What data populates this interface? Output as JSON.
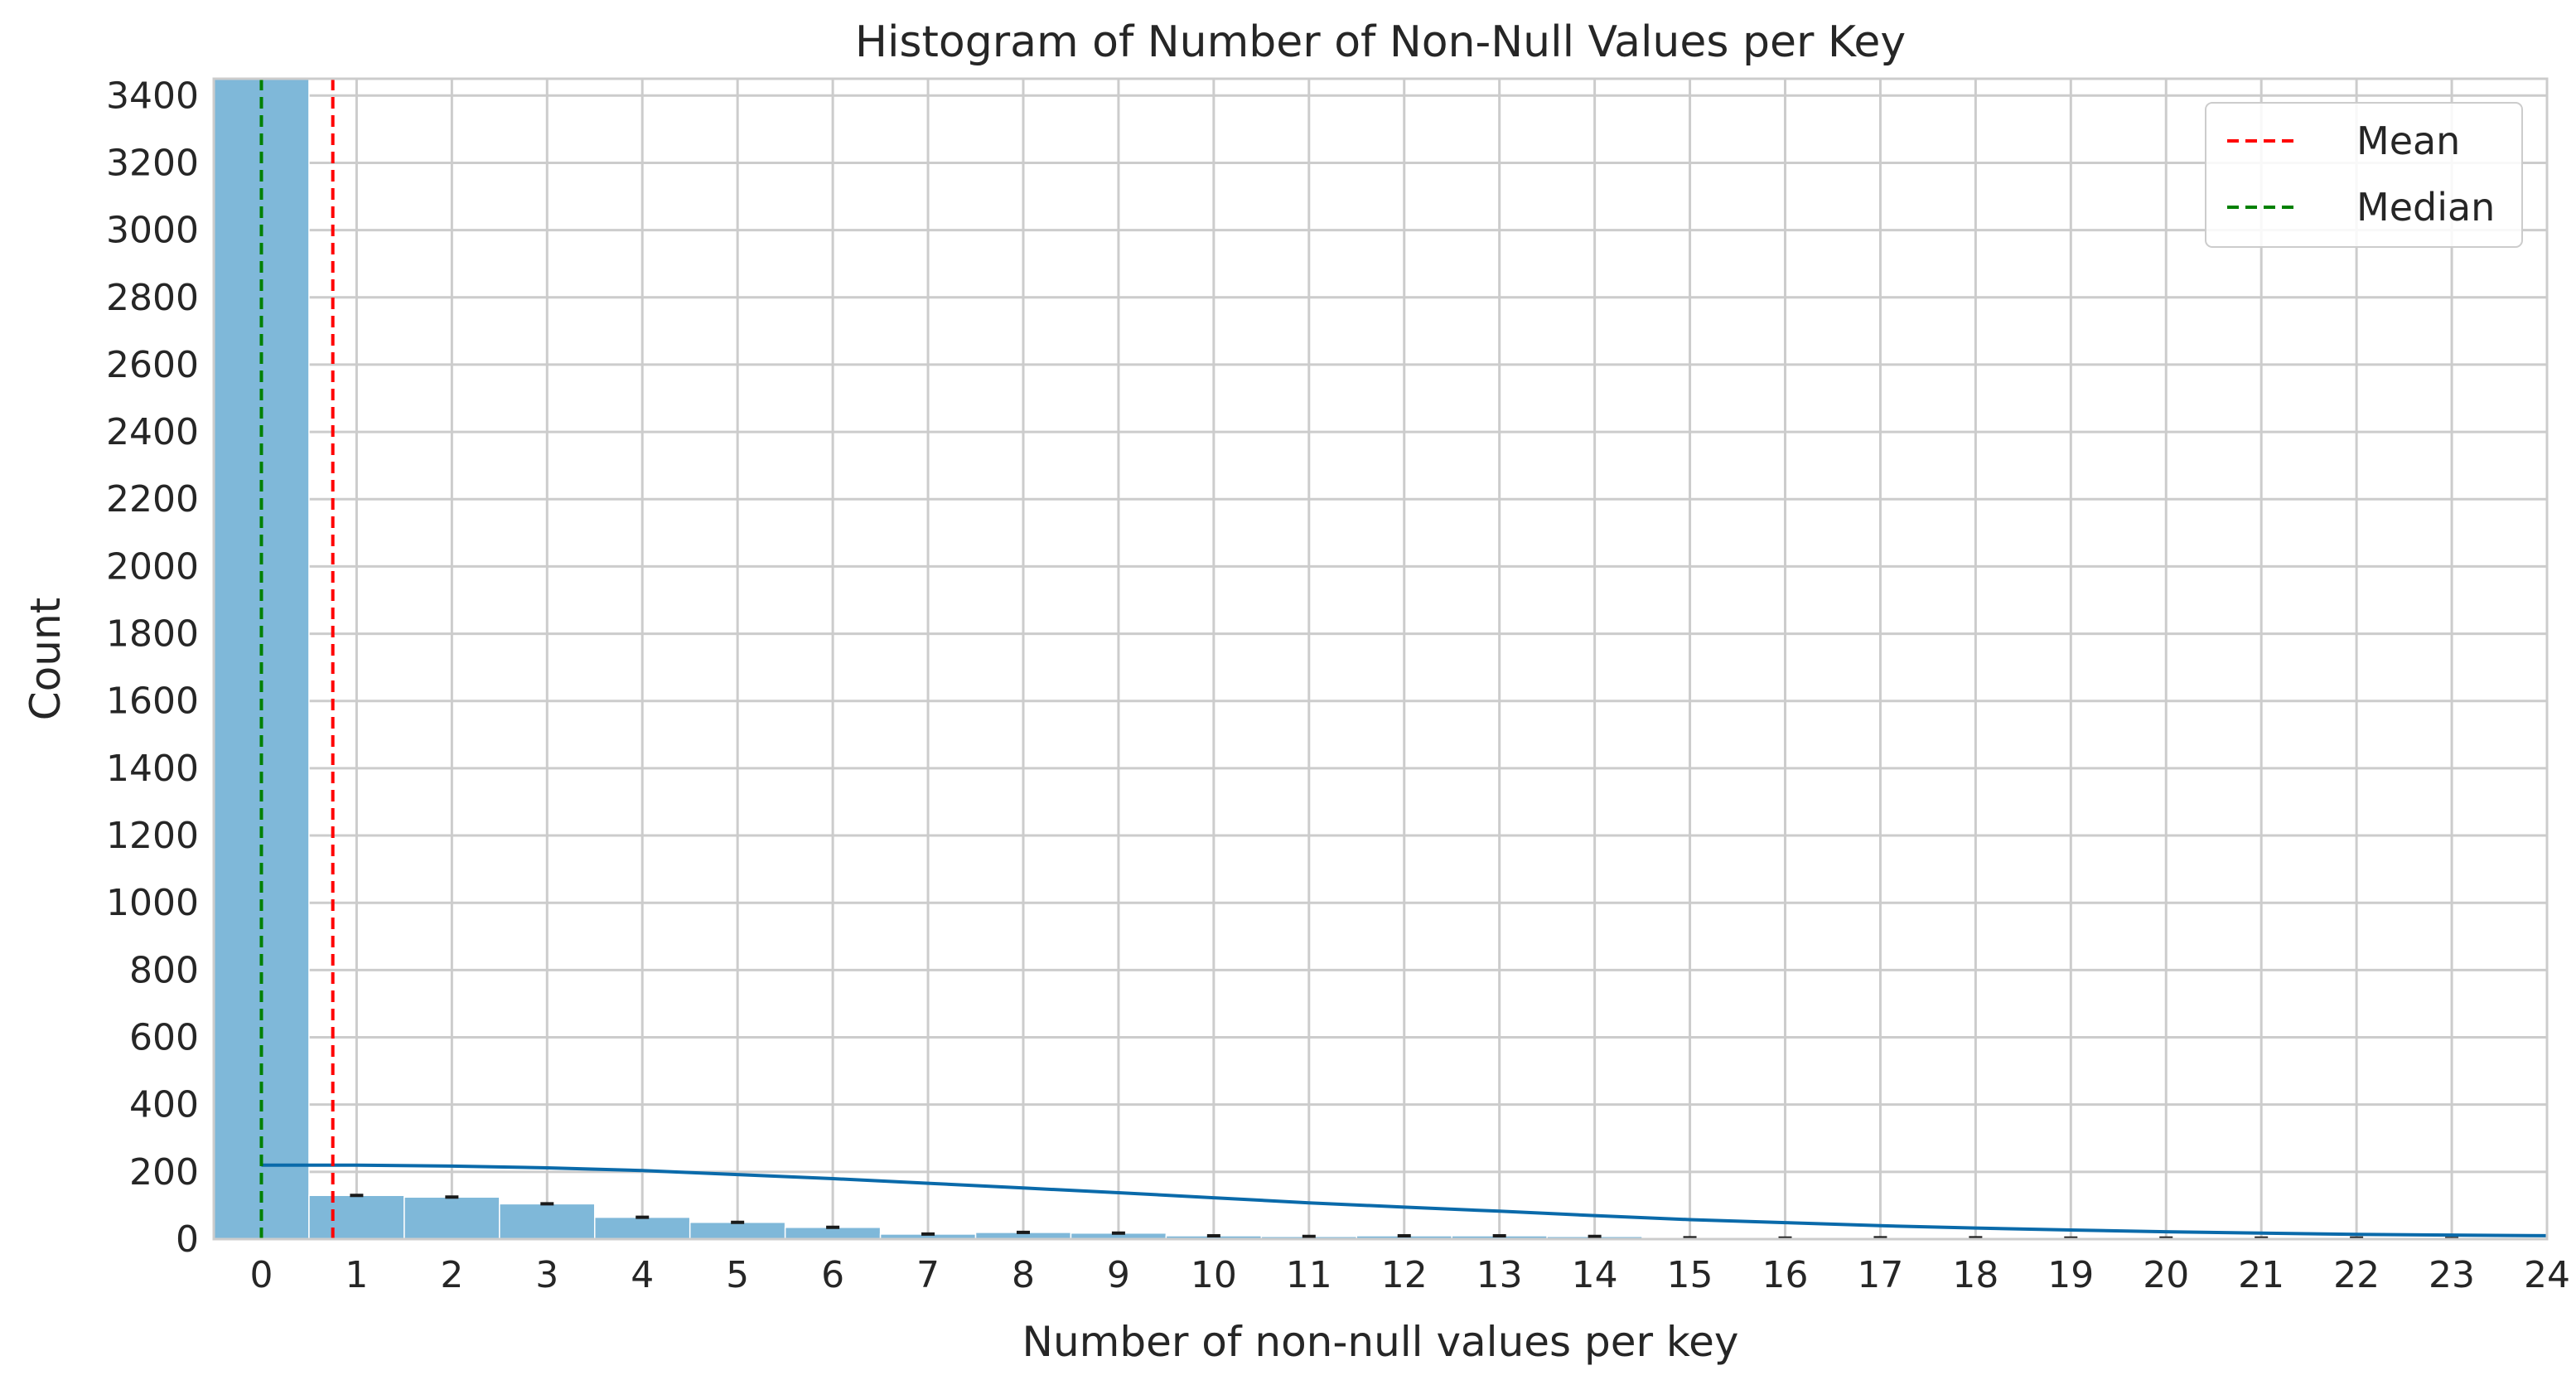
{
  "chart_data": {
    "type": "bar",
    "title": "Histogram of Number of Non-Null Values per Key",
    "xlabel": "Number of non-null values per key",
    "ylabel": "Count",
    "xlim": [
      -0.5,
      24
    ],
    "ylim": [
      0,
      3450
    ],
    "x_ticks": [
      0,
      1,
      2,
      3,
      4,
      5,
      6,
      7,
      8,
      9,
      10,
      11,
      12,
      13,
      14,
      15,
      16,
      17,
      18,
      19,
      20,
      21,
      22,
      23,
      24
    ],
    "y_ticks": [
      0,
      200,
      400,
      600,
      800,
      1000,
      1200,
      1400,
      1600,
      1800,
      2000,
      2200,
      2400,
      2600,
      2800,
      3000,
      3200,
      3400
    ],
    "grid": true,
    "legend_position": "top-right",
    "bins": {
      "x": [
        0,
        1,
        2,
        3,
        4,
        5,
        6,
        7,
        8,
        9,
        10,
        11,
        12,
        13,
        14,
        15,
        16,
        17,
        18,
        19,
        20,
        21,
        22,
        23
      ],
      "values": [
        3450,
        130,
        125,
        105,
        65,
        50,
        35,
        15,
        20,
        18,
        10,
        8,
        10,
        10,
        8,
        4,
        3,
        4,
        4,
        3,
        3,
        3,
        3,
        2
      ]
    },
    "kde": {
      "x": [
        0,
        1,
        2,
        3,
        4,
        5,
        6,
        7,
        8,
        9,
        10,
        11,
        12,
        13,
        14,
        15,
        16,
        17,
        18,
        19,
        20,
        21,
        22,
        23,
        24
      ],
      "values": [
        220,
        220,
        217,
        212,
        204,
        192,
        180,
        166,
        152,
        138,
        123,
        108,
        95,
        83,
        70,
        58,
        49,
        40,
        33,
        27,
        22,
        18,
        14,
        12,
        10
      ]
    },
    "mean": 0.75,
    "median": 0,
    "legend": [
      {
        "label": "Mean",
        "color": "#ff0000"
      },
      {
        "label": "Median",
        "color": "#008000"
      }
    ],
    "colors": {
      "bar": "#7fb8d9",
      "kde": "#0a6aaa",
      "grid": "#cccccc"
    }
  }
}
